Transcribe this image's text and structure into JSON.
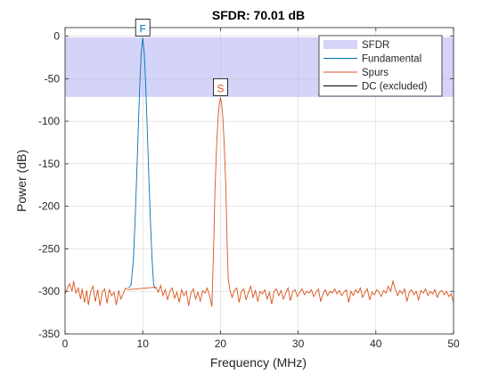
{
  "chart_data": {
    "type": "line",
    "title": "SFDR:  70.01 dB",
    "xlabel": "Frequency (MHz)",
    "ylabel": "Power (dB)",
    "xlim": [
      0,
      50
    ],
    "ylim": [
      -350,
      10
    ],
    "xticks": [
      0,
      10,
      20,
      30,
      40,
      50
    ],
    "yticks": [
      0,
      -50,
      -100,
      -150,
      -200,
      -250,
      -300,
      -350
    ],
    "ytick_labels": [
      "0",
      "-50",
      "-100",
      "-150",
      "-200",
      "-250",
      "-300",
      "-350"
    ],
    "grid": true,
    "legend_position": "top-right",
    "sfdr_band": {
      "name": "SFDR",
      "y_top": -1.5,
      "y_bottom": -71.5,
      "color": "#d4d4f8"
    },
    "series": [
      {
        "name": "Fundamental",
        "color": "#0072bd",
        "points": [
          [
            8.2,
            -296
          ],
          [
            8.5,
            -292
          ],
          [
            8.8,
            -262
          ],
          [
            9.0,
            -220
          ],
          [
            9.2,
            -170
          ],
          [
            9.4,
            -115
          ],
          [
            9.6,
            -62
          ],
          [
            9.8,
            -20
          ],
          [
            10.0,
            -2
          ],
          [
            10.2,
            -20
          ],
          [
            10.4,
            -62
          ],
          [
            10.6,
            -115
          ],
          [
            10.8,
            -170
          ],
          [
            11.0,
            -220
          ],
          [
            11.2,
            -262
          ],
          [
            11.4,
            -292
          ],
          [
            11.6,
            -297
          ]
        ]
      },
      {
        "name": "Spurs",
        "color": "#d95319",
        "points": [
          [
            0.0,
            -303
          ],
          [
            0.3,
            -296
          ],
          [
            0.6,
            -291
          ],
          [
            0.9,
            -300
          ],
          [
            1.1,
            -288
          ],
          [
            1.4,
            -302
          ],
          [
            1.7,
            -296
          ],
          [
            2.0,
            -309
          ],
          [
            2.2,
            -297
          ],
          [
            2.5,
            -313
          ],
          [
            2.8,
            -299
          ],
          [
            3.0,
            -316
          ],
          [
            3.3,
            -300
          ],
          [
            3.6,
            -294
          ],
          [
            3.9,
            -312
          ],
          [
            4.2,
            -298
          ],
          [
            4.5,
            -317
          ],
          [
            4.8,
            -301
          ],
          [
            5.1,
            -297
          ],
          [
            5.4,
            -314
          ],
          [
            5.7,
            -298
          ],
          [
            6.0,
            -305
          ],
          [
            6.3,
            -301
          ],
          [
            6.6,
            -316
          ],
          [
            6.9,
            -299
          ],
          [
            7.2,
            -309
          ],
          [
            7.5,
            -302
          ],
          [
            7.8,
            -296
          ],
          [
            8.1,
            -298
          ],
          [
            11.7,
            -295
          ],
          [
            12.0,
            -301
          ],
          [
            12.3,
            -293
          ],
          [
            12.6,
            -305
          ],
          [
            12.9,
            -298
          ],
          [
            13.2,
            -310
          ],
          [
            13.5,
            -300
          ],
          [
            13.8,
            -296
          ],
          [
            14.1,
            -308
          ],
          [
            14.4,
            -301
          ],
          [
            14.7,
            -313
          ],
          [
            15.0,
            -298
          ],
          [
            15.3,
            -305
          ],
          [
            15.6,
            -300
          ],
          [
            15.9,
            -317
          ],
          [
            16.2,
            -302
          ],
          [
            16.5,
            -297
          ],
          [
            16.8,
            -309
          ],
          [
            17.1,
            -301
          ],
          [
            17.4,
            -312
          ],
          [
            17.7,
            -299
          ],
          [
            18.0,
            -302
          ],
          [
            18.3,
            -296
          ],
          [
            18.6,
            -305
          ],
          [
            18.9,
            -318
          ],
          [
            19.0,
            -285
          ],
          [
            19.15,
            -240
          ],
          [
            19.3,
            -180
          ],
          [
            19.5,
            -130
          ],
          [
            19.7,
            -95
          ],
          [
            19.85,
            -80
          ],
          [
            20.0,
            -72
          ],
          [
            20.15,
            -80
          ],
          [
            20.3,
            -95
          ],
          [
            20.5,
            -130
          ],
          [
            20.7,
            -180
          ],
          [
            20.85,
            -240
          ],
          [
            21.0,
            -285
          ],
          [
            21.2,
            -298
          ],
          [
            21.5,
            -307
          ],
          [
            21.8,
            -299
          ],
          [
            22.1,
            -296
          ],
          [
            22.4,
            -313
          ],
          [
            22.7,
            -300
          ],
          [
            23.0,
            -297
          ],
          [
            23.3,
            -310
          ],
          [
            23.6,
            -301
          ],
          [
            23.9,
            -294
          ],
          [
            24.2,
            -307
          ],
          [
            24.5,
            -299
          ],
          [
            24.8,
            -312
          ],
          [
            25.1,
            -300
          ],
          [
            25.4,
            -303
          ],
          [
            25.7,
            -298
          ],
          [
            26.0,
            -309
          ],
          [
            26.3,
            -301
          ],
          [
            26.6,
            -315
          ],
          [
            26.9,
            -300
          ],
          [
            27.2,
            -297
          ],
          [
            27.5,
            -305
          ],
          [
            27.8,
            -299
          ],
          [
            28.1,
            -309
          ],
          [
            28.4,
            -302
          ],
          [
            28.7,
            -296
          ],
          [
            29.0,
            -311
          ],
          [
            29.3,
            -300
          ],
          [
            29.6,
            -298
          ],
          [
            29.9,
            -306
          ],
          [
            30.2,
            -301
          ],
          [
            30.5,
            -297
          ],
          [
            30.8,
            -304
          ],
          [
            31.1,
            -300
          ],
          [
            31.4,
            -302
          ],
          [
            31.7,
            -298
          ],
          [
            32.0,
            -306
          ],
          [
            32.3,
            -301
          ],
          [
            32.6,
            -297
          ],
          [
            32.9,
            -312
          ],
          [
            33.2,
            -303
          ],
          [
            33.5,
            -298
          ],
          [
            33.8,
            -305
          ],
          [
            34.1,
            -300
          ],
          [
            34.4,
            -302
          ],
          [
            34.7,
            -297
          ],
          [
            35.0,
            -303
          ],
          [
            35.3,
            -299
          ],
          [
            35.6,
            -305
          ],
          [
            35.9,
            -301
          ],
          [
            36.2,
            -298
          ],
          [
            36.5,
            -313
          ],
          [
            36.8,
            -300
          ],
          [
            37.1,
            -305
          ],
          [
            37.4,
            -298
          ],
          [
            37.7,
            -302
          ],
          [
            38.0,
            -296
          ],
          [
            38.3,
            -307
          ],
          [
            38.6,
            -301
          ],
          [
            38.9,
            -297
          ],
          [
            39.2,
            -310
          ],
          [
            39.5,
            -301
          ],
          [
            39.8,
            -304
          ],
          [
            40.1,
            -298
          ],
          [
            40.4,
            -301
          ],
          [
            40.7,
            -306
          ],
          [
            41.0,
            -299
          ],
          [
            41.3,
            -302
          ],
          [
            41.6,
            -294
          ],
          [
            41.9,
            -300
          ],
          [
            42.2,
            -288
          ],
          [
            42.5,
            -297
          ],
          [
            42.8,
            -305
          ],
          [
            43.1,
            -299
          ],
          [
            43.4,
            -303
          ],
          [
            43.7,
            -297
          ],
          [
            44.0,
            -312
          ],
          [
            44.3,
            -301
          ],
          [
            44.6,
            -298
          ],
          [
            44.9,
            -304
          ],
          [
            45.2,
            -300
          ],
          [
            45.5,
            -310
          ],
          [
            45.8,
            -299
          ],
          [
            46.1,
            -302
          ],
          [
            46.4,
            -297
          ],
          [
            46.7,
            -305
          ],
          [
            47.0,
            -300
          ],
          [
            47.3,
            -303
          ],
          [
            47.6,
            -298
          ],
          [
            47.9,
            -307
          ],
          [
            48.2,
            -301
          ],
          [
            48.5,
            -299
          ],
          [
            48.8,
            -304
          ],
          [
            49.1,
            -300
          ],
          [
            49.4,
            -306
          ],
          [
            49.7,
            -303
          ],
          [
            50.0,
            -313
          ]
        ]
      },
      {
        "name": "DC (excluded)",
        "color": "#000000",
        "points": []
      }
    ],
    "markers": [
      {
        "label": "F",
        "x": 10,
        "y": -2,
        "color": "#0072bd"
      },
      {
        "label": "S",
        "x": 20,
        "y": -72,
        "color": "#d95319"
      }
    ]
  }
}
